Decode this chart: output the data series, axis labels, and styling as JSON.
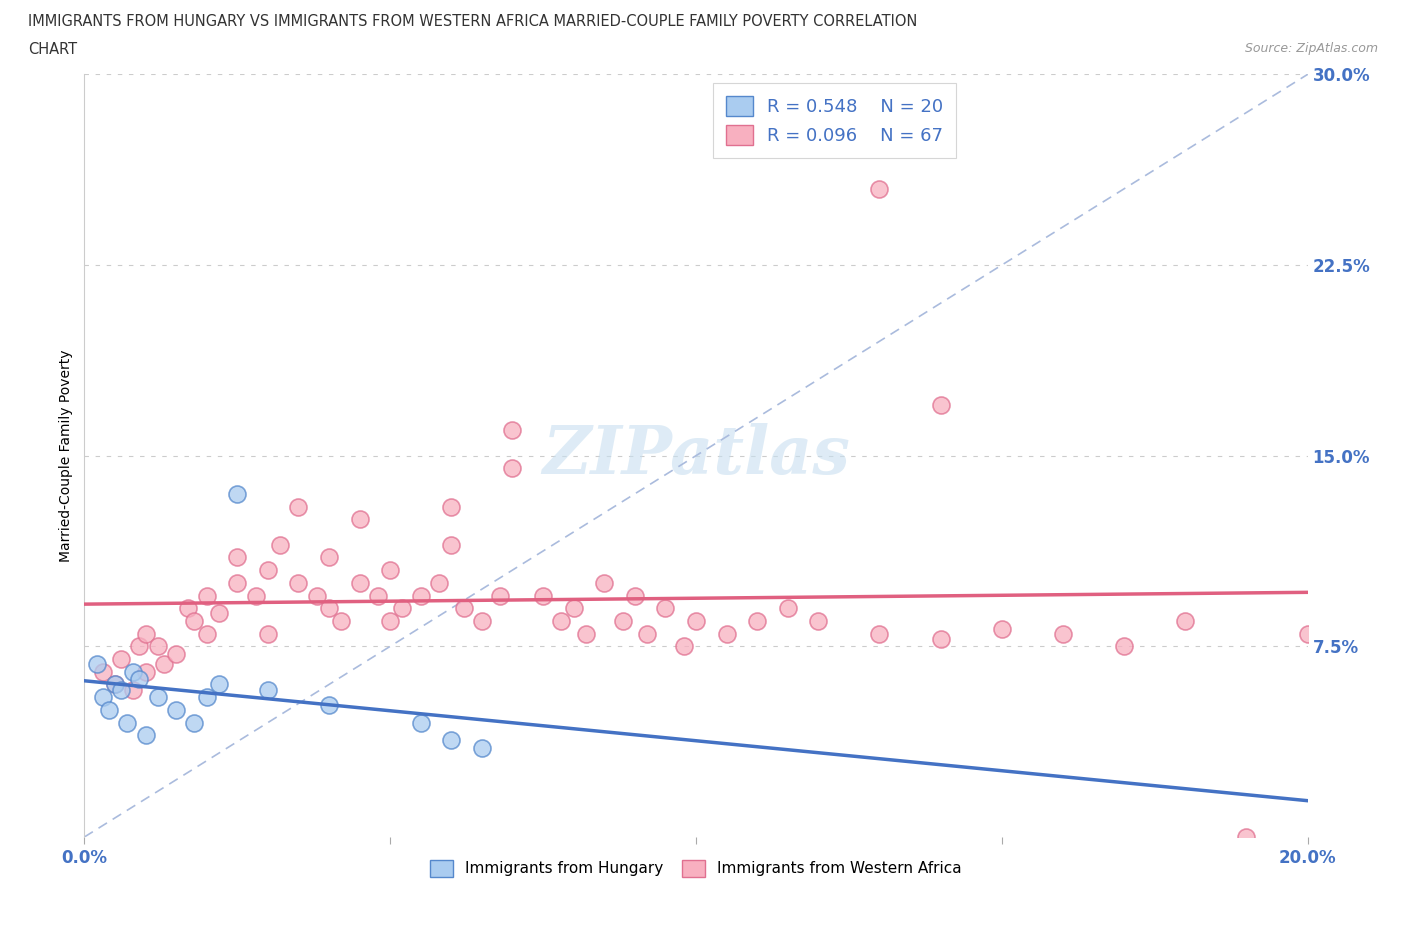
{
  "title_line1": "IMMIGRANTS FROM HUNGARY VS IMMIGRANTS FROM WESTERN AFRICA MARRIED-COUPLE FAMILY POVERTY CORRELATION",
  "title_line2": "CHART",
  "source": "Source: ZipAtlas.com",
  "ylabel": "Married-Couple Family Poverty",
  "xlim": [
    0.0,
    0.2
  ],
  "ylim": [
    0.0,
    0.3
  ],
  "xticks": [
    0.0,
    0.05,
    0.1,
    0.15,
    0.2
  ],
  "ytick_labels_right": [
    "",
    "7.5%",
    "15.0%",
    "22.5%",
    "30.0%"
  ],
  "yticks": [
    0.0,
    0.075,
    0.15,
    0.225,
    0.3
  ],
  "R_hungary": 0.548,
  "N_hungary": 20,
  "R_western_africa": 0.096,
  "N_western_africa": 67,
  "color_hungary": "#aaccf0",
  "color_hungary_edge": "#5588cc",
  "color_hungary_line": "#4472c4",
  "color_western_africa": "#f8b0c0",
  "color_western_africa_edge": "#e07090",
  "color_western_africa_line": "#e06080",
  "color_reference_line": "#aabbdd",
  "legend_R_color": "#4472c4",
  "hungary_x": [
    0.005,
    0.008,
    0.003,
    0.006,
    0.009,
    0.002,
    0.004,
    0.007,
    0.01,
    0.012,
    0.015,
    0.018,
    0.02,
    0.022,
    0.025,
    0.03,
    0.04,
    0.055,
    0.06,
    0.065
  ],
  "hungary_y": [
    0.06,
    0.065,
    0.055,
    0.058,
    0.062,
    0.068,
    0.05,
    0.045,
    0.04,
    0.055,
    0.05,
    0.045,
    0.055,
    0.06,
    0.135,
    0.058,
    0.052,
    0.045,
    0.038,
    0.035
  ],
  "western_africa_x": [
    0.003,
    0.005,
    0.006,
    0.008,
    0.009,
    0.01,
    0.01,
    0.012,
    0.013,
    0.015,
    0.017,
    0.018,
    0.02,
    0.02,
    0.022,
    0.025,
    0.025,
    0.028,
    0.03,
    0.03,
    0.032,
    0.035,
    0.035,
    0.038,
    0.04,
    0.04,
    0.042,
    0.045,
    0.045,
    0.048,
    0.05,
    0.05,
    0.052,
    0.055,
    0.058,
    0.06,
    0.06,
    0.062,
    0.065,
    0.068,
    0.07,
    0.07,
    0.075,
    0.078,
    0.08,
    0.082,
    0.085,
    0.088,
    0.09,
    0.092,
    0.095,
    0.098,
    0.1,
    0.105,
    0.11,
    0.115,
    0.12,
    0.13,
    0.14,
    0.15,
    0.16,
    0.17,
    0.18,
    0.19,
    0.2,
    0.13,
    0.14
  ],
  "western_africa_y": [
    0.065,
    0.06,
    0.07,
    0.058,
    0.075,
    0.065,
    0.08,
    0.075,
    0.068,
    0.072,
    0.09,
    0.085,
    0.08,
    0.095,
    0.088,
    0.1,
    0.11,
    0.095,
    0.105,
    0.08,
    0.115,
    0.1,
    0.13,
    0.095,
    0.09,
    0.11,
    0.085,
    0.1,
    0.125,
    0.095,
    0.105,
    0.085,
    0.09,
    0.095,
    0.1,
    0.115,
    0.13,
    0.09,
    0.085,
    0.095,
    0.145,
    0.16,
    0.095,
    0.085,
    0.09,
    0.08,
    0.1,
    0.085,
    0.095,
    0.08,
    0.09,
    0.075,
    0.085,
    0.08,
    0.085,
    0.09,
    0.085,
    0.08,
    0.078,
    0.082,
    0.08,
    0.075,
    0.085,
    0.0,
    0.08,
    0.255,
    0.17
  ]
}
